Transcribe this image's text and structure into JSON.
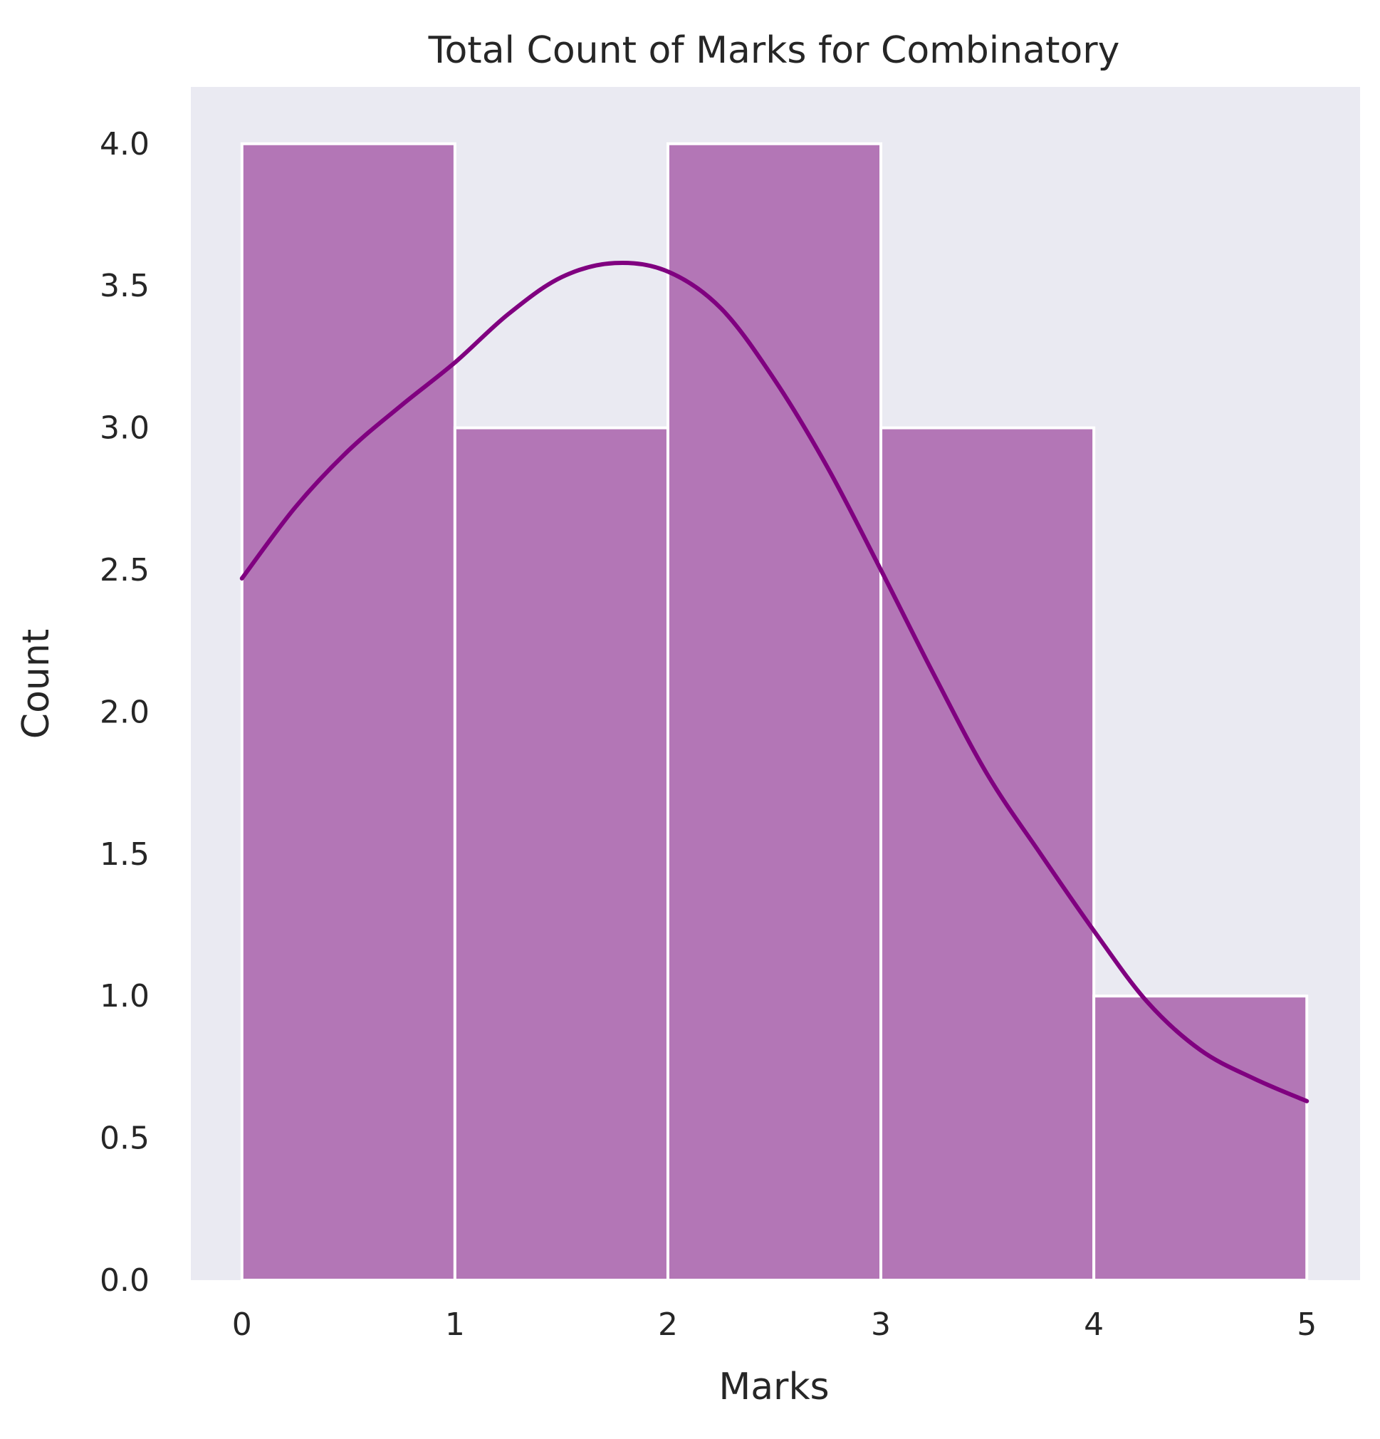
{
  "chart_data": {
    "type": "bar",
    "title": "Total Count of Marks for Combinatory",
    "xlabel": "Marks",
    "ylabel": "Count",
    "x_ticks": [
      "0",
      "1",
      "2",
      "3",
      "4",
      "5"
    ],
    "y_ticks": [
      "0.0",
      "0.5",
      "1.0",
      "1.5",
      "2.0",
      "2.5",
      "3.0",
      "3.5",
      "4.0"
    ],
    "bins": [
      {
        "start": 0,
        "end": 1,
        "value": 4
      },
      {
        "start": 1,
        "end": 2,
        "value": 3
      },
      {
        "start": 2,
        "end": 3,
        "value": 4
      },
      {
        "start": 3,
        "end": 4,
        "value": 3
      },
      {
        "start": 4,
        "end": 5,
        "value": 1
      }
    ],
    "kde_curve": {
      "x": [
        0,
        0.25,
        0.5,
        0.75,
        1.0,
        1.25,
        1.5,
        1.75,
        2.0,
        2.25,
        2.5,
        2.75,
        3.0,
        3.25,
        3.5,
        3.75,
        4.0,
        4.25,
        4.5,
        4.75,
        5.0
      ],
      "y": [
        2.47,
        2.72,
        2.92,
        3.08,
        3.23,
        3.4,
        3.53,
        3.58,
        3.55,
        3.42,
        3.17,
        2.86,
        2.5,
        2.13,
        1.78,
        1.5,
        1.23,
        0.98,
        0.81,
        0.71,
        0.63
      ]
    },
    "xlim": [
      -0.24,
      5.25
    ],
    "ylim": [
      0,
      4.2
    ],
    "grid": false,
    "colors": {
      "background": "#eaeaf2",
      "bar_fill": "#b376b6",
      "bar_edge": "#ffffff",
      "line": "#800080"
    }
  }
}
